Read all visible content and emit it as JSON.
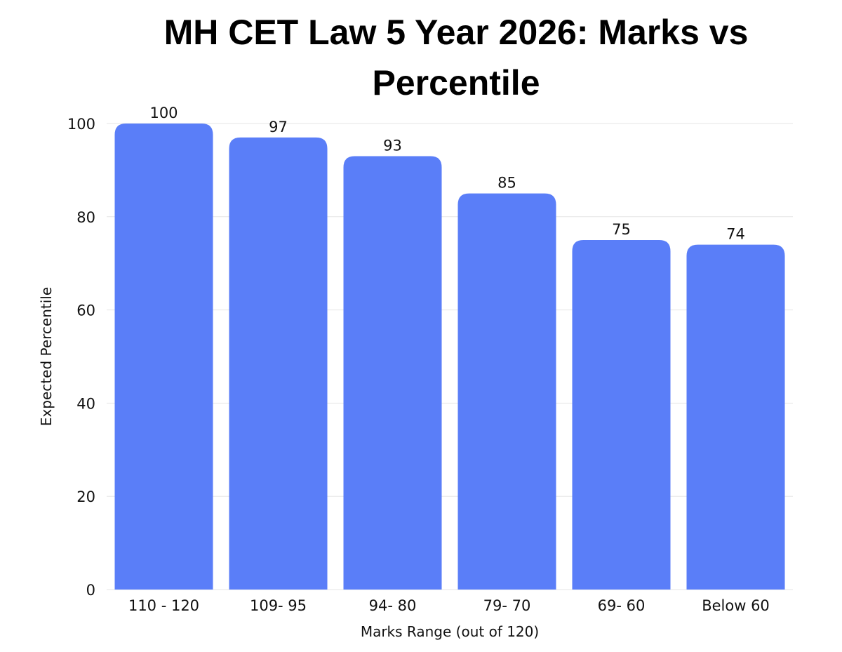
{
  "chart_data": {
    "type": "bar",
    "title": "MH CET Law 5 Year 2026: Marks vs Percentile",
    "xlabel": "Marks Range (out of 120)",
    "ylabel": "Expected Percentile",
    "categories": [
      "110 - 120",
      "109- 95",
      "94- 80",
      "79- 70",
      "69- 60",
      "Below 60"
    ],
    "values": [
      100,
      97,
      93,
      85,
      75,
      74
    ],
    "value_labels": [
      "100",
      "97",
      "93",
      "85",
      "75",
      "74"
    ],
    "ylim": [
      0,
      100
    ],
    "yticks": [
      0,
      20,
      40,
      60,
      80,
      100
    ],
    "ytick_labels": [
      "0",
      "20",
      "40",
      "60",
      "80",
      "100"
    ],
    "grid": true,
    "bar_color": "#5a7ef8",
    "grid_color": "#e6e6e6"
  }
}
